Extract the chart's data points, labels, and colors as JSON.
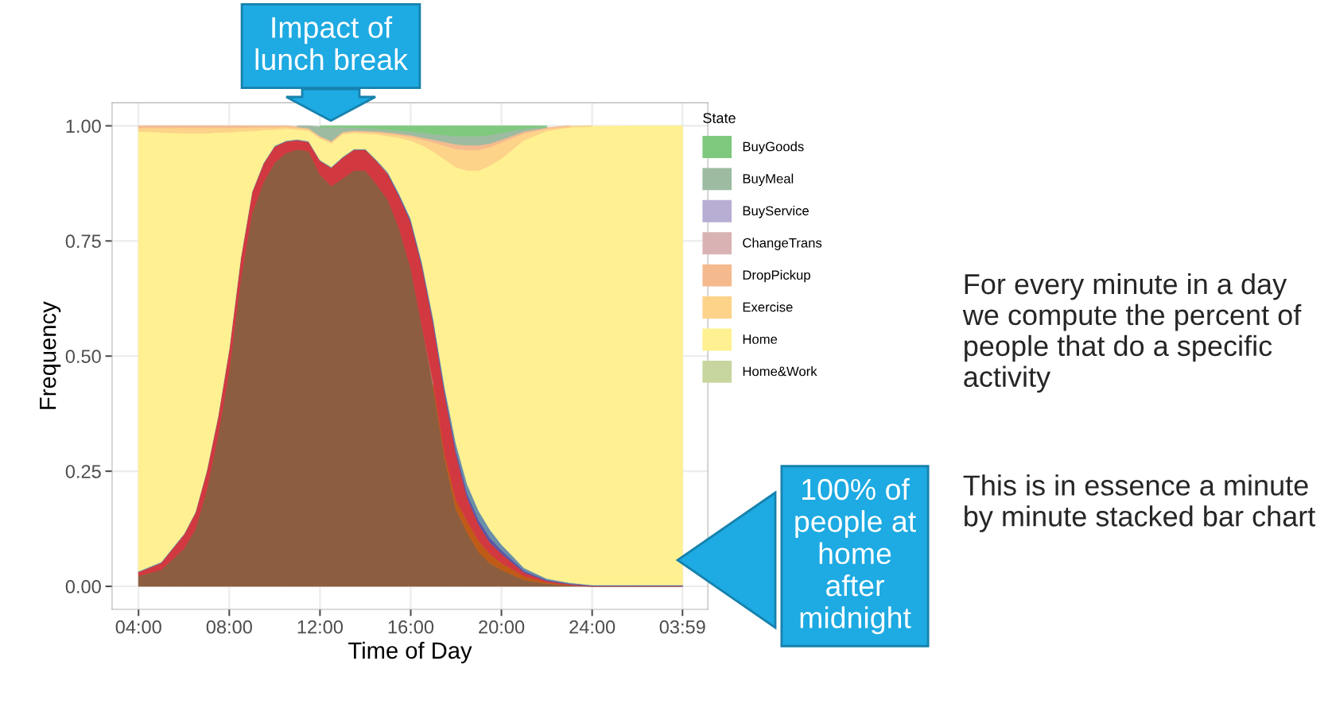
{
  "chart_data": {
    "type": "area",
    "stacked": true,
    "xlabel": "Time of Day",
    "ylabel": "Frequency",
    "legend_title": "State",
    "legend": "right",
    "grid": true,
    "x": [
      "2000-01-01T04:00",
      "2000-01-01T05:00",
      "2000-01-01T06:00",
      "2000-01-01T06:30",
      "2000-01-01T07:00",
      "2000-01-01T07:30",
      "2000-01-01T08:00",
      "2000-01-01T08:30",
      "2000-01-01T09:00",
      "2000-01-01T09:30",
      "2000-01-01T10:00",
      "2000-01-01T10:30",
      "2000-01-01T11:00",
      "2000-01-01T11:30",
      "2000-01-01T12:00",
      "2000-01-01T12:30",
      "2000-01-01T13:00",
      "2000-01-01T13:30",
      "2000-01-01T14:00",
      "2000-01-01T14:30",
      "2000-01-01T15:00",
      "2000-01-01T15:30",
      "2000-01-01T16:00",
      "2000-01-01T16:30",
      "2000-01-01T17:00",
      "2000-01-01T17:30",
      "2000-01-01T18:00",
      "2000-01-01T18:30",
      "2000-01-01T19:00",
      "2000-01-01T19:30",
      "2000-01-01T20:00",
      "2000-01-01T21:00",
      "2000-01-01T22:00",
      "2000-01-01T23:00",
      "2000-01-02T00:00",
      "2000-01-02T02:00",
      "2000-01-02T03:59"
    ],
    "xlim": [
      "2000-01-01T02:50",
      "2000-01-02T05:06"
    ],
    "xticks": [
      {
        "value": "2000-01-01T04:00",
        "label": "04:00"
      },
      {
        "value": "2000-01-01T08:00",
        "label": "08:00"
      },
      {
        "value": "2000-01-01T12:00",
        "label": "12:00"
      },
      {
        "value": "2000-01-01T16:00",
        "label": "16:00"
      },
      {
        "value": "2000-01-01T20:00",
        "label": "20:00"
      },
      {
        "value": "2000-01-02T00:00",
        "label": "24:00"
      },
      {
        "value": "2000-01-02T03:59",
        "label": "03:59"
      }
    ],
    "ylim": [
      -0.05,
      1.05
    ],
    "yticks": [
      {
        "value": 0,
        "label": "0.00"
      },
      {
        "value": 0.25,
        "label": "0.25"
      },
      {
        "value": 0.5,
        "label": "0.50"
      },
      {
        "value": 0.75,
        "label": "0.75"
      },
      {
        "value": 1,
        "label": "1.00"
      }
    ],
    "series": [
      {
        "color": "#8c5e3f",
        "values": [
          0.023,
          0.036,
          0.082,
          0.124,
          0.209,
          0.327,
          0.471,
          0.666,
          0.81,
          0.877,
          0.92,
          0.941,
          0.949,
          0.945,
          0.894,
          0.869,
          0.886,
          0.903,
          0.903,
          0.873,
          0.839,
          0.776,
          0.691,
          0.564,
          0.429,
          0.277,
          0.167,
          0.116,
          0.074,
          0.05,
          0.036,
          0.014,
          0.006,
          0.002,
          0,
          0,
          0
        ]
      },
      {
        "color": "#bf5b17",
        "values": [
          null,
          null,
          null,
          null,
          null,
          null,
          null,
          null,
          null,
          null,
          null,
          null,
          null,
          null,
          null,
          null,
          null,
          null,
          null,
          null,
          null,
          null,
          null,
          null,
          0.01,
          0.01,
          0.02,
          0.025,
          0.025,
          0.02,
          0.015,
          0.008,
          0.003,
          0.001,
          null,
          null,
          null
        ]
      },
      {
        "color": "#d2383f",
        "values": [
          0.008,
          0.015,
          0.03,
          0.035,
          0.04,
          0.04,
          0.045,
          0.045,
          0.045,
          0.04,
          0.035,
          0.025,
          0.02,
          0.02,
          0.03,
          0.04,
          0.045,
          0.045,
          0.045,
          0.05,
          0.055,
          0.07,
          0.1,
          0.13,
          0.13,
          0.13,
          0.1,
          0.05,
          0.035,
          0.025,
          0.02,
          0.008,
          0.003,
          0.002,
          0.001,
          0.001,
          0.001
        ]
      },
      {
        "color": "#5b55a5",
        "values": [
          null,
          null,
          null,
          null,
          null,
          null,
          null,
          null,
          null,
          null,
          null,
          null,
          null,
          null,
          null,
          null,
          null,
          null,
          null,
          null,
          0.002,
          0.002,
          0.003,
          0.004,
          0.005,
          0.006,
          0.008,
          0.01,
          0.01,
          0.01,
          0.008,
          0.004,
          0.002,
          0.001,
          0.001,
          0.001,
          0.001
        ]
      },
      {
        "color": "#6a8fa8",
        "values": [
          0.002,
          0.002,
          0.002,
          0.002,
          0.002,
          0.002,
          0.002,
          0.002,
          0.002,
          0.002,
          0.002,
          0.002,
          0.002,
          0.002,
          0.002,
          0.002,
          0.002,
          0.002,
          0.002,
          0.003,
          0.003,
          0.004,
          0.005,
          0.006,
          0.007,
          0.01,
          0.015,
          0.02,
          0.02,
          0.018,
          0.012,
          0.006,
          0.003,
          0.002,
          0.001,
          0.001,
          0.001
        ]
      },
      {
        "name": "Home&Work",
        "color": "#c7d59f",
        "values": [
          null,
          null,
          null,
          null,
          null,
          null,
          null,
          null,
          null,
          null,
          null,
          null,
          null,
          null,
          null,
          null,
          null,
          null,
          null,
          null,
          null,
          null,
          null,
          null,
          null,
          null,
          null,
          null,
          null,
          null,
          null,
          null,
          null,
          null,
          null,
          null,
          null
        ]
      },
      {
        "name": "Home",
        "color": "#fff191",
        "values": [
          0.955,
          0.933,
          0.87,
          0.823,
          0.733,
          0.617,
          0.468,
          0.275,
          0.132,
          0.072,
          0.035,
          0.026,
          0.021,
          0.023,
          0.047,
          0.051,
          0.049,
          0.035,
          0.033,
          0.056,
          0.079,
          0.122,
          0.169,
          0.254,
          0.363,
          0.494,
          0.6,
          0.682,
          0.739,
          0.791,
          0.838,
          0.929,
          0.972,
          0.989,
          0.996,
          0.997,
          0.997
        ]
      },
      {
        "name": "Exercise",
        "color": "#fdd38a",
        "values": [
          0.008,
          0.01,
          0.012,
          0.012,
          0.012,
          0.01,
          0.01,
          0.008,
          0.008,
          0.006,
          0.005,
          0.004,
          0.004,
          0.003,
          0.003,
          0.003,
          0.003,
          0.003,
          0.004,
          0.004,
          0.005,
          0.006,
          0.008,
          0.012,
          0.02,
          0.03,
          0.04,
          0.045,
          0.045,
          0.04,
          0.035,
          0.015,
          0.005,
          0.002,
          0.001,
          null,
          null
        ]
      },
      {
        "name": "DropPickup",
        "color": "#f4ba8e",
        "values": [
          0.004,
          0.004,
          0.004,
          0.004,
          0.004,
          0.004,
          0.004,
          0.004,
          0.003,
          0.003,
          0.003,
          0.002,
          0.002,
          0.002,
          0.002,
          0.002,
          0.002,
          0.002,
          0.002,
          0.002,
          0.003,
          0.003,
          0.004,
          0.005,
          0.006,
          0.008,
          0.01,
          0.01,
          0.01,
          0.008,
          0.006,
          0.004,
          0.002,
          0.001,
          null,
          null,
          null
        ]
      },
      {
        "name": "ChangeTrans",
        "color": "#d9b3b3",
        "values": [
          null,
          null,
          null,
          null,
          null,
          null,
          null,
          null,
          null,
          null,
          null,
          null,
          null,
          null,
          null,
          null,
          null,
          null,
          null,
          null,
          null,
          null,
          null,
          null,
          null,
          null,
          null,
          null,
          null,
          null,
          null,
          null,
          null,
          null,
          null,
          null,
          null
        ]
      },
      {
        "name": "BuyService",
        "color": "#b8aed3",
        "values": [
          null,
          null,
          null,
          null,
          null,
          null,
          null,
          null,
          null,
          null,
          null,
          null,
          null,
          null,
          null,
          null,
          null,
          null,
          null,
          null,
          null,
          null,
          null,
          null,
          null,
          null,
          null,
          null,
          null,
          null,
          null,
          null,
          null,
          null,
          null,
          null,
          null
        ]
      },
      {
        "name": "BuyMeal",
        "color": "#9dbba0",
        "values": [
          null,
          null,
          null,
          null,
          null,
          null,
          null,
          null,
          null,
          null,
          null,
          null,
          0.002,
          0.005,
          0.02,
          0.03,
          0.01,
          0.006,
          0.006,
          0.006,
          0.006,
          0.007,
          0.008,
          0.01,
          0.012,
          0.015,
          0.018,
          0.02,
          0.02,
          0.018,
          0.015,
          0.006,
          0.002,
          null,
          null,
          null,
          null
        ]
      },
      {
        "name": "BuyGoods",
        "color": "#7fc97f",
        "values": [
          null,
          null,
          null,
          null,
          null,
          null,
          null,
          null,
          null,
          null,
          null,
          null,
          null,
          null,
          0.002,
          0.003,
          0.003,
          0.004,
          0.005,
          0.006,
          0.008,
          0.01,
          0.012,
          0.015,
          0.018,
          0.02,
          0.022,
          0.022,
          0.022,
          0.02,
          0.015,
          0.006,
          0.002,
          null,
          null,
          null,
          null
        ]
      }
    ],
    "annotations": [
      "Impact of\nlunch break",
      "100% of\npeople at\nhome\nafter\nmidnight",
      "For every minute in a day we compute the percent of people that do a specific activity",
      "This is in essence a minute by minute stacked bar chart"
    ]
  }
}
